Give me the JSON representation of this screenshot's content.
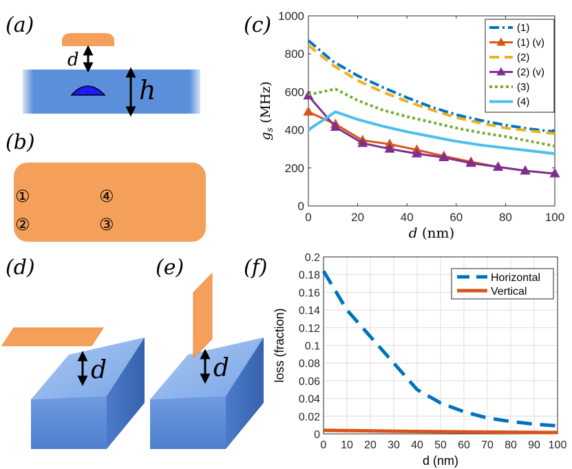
{
  "panels": {
    "a": "(a)",
    "b": "(b)",
    "c": "(c)",
    "d": "(d)",
    "e": "(e)",
    "f": "(f)"
  },
  "schematic_a": {
    "d_label": "d",
    "h_label": "h"
  },
  "schematic_b": {
    "markers": [
      "①",
      "④",
      "②",
      "③"
    ]
  },
  "schematic_d": {
    "d_label": "d"
  },
  "schematic_e": {
    "d_label": "d"
  },
  "colors": {
    "orange": "#f4a05a",
    "orange_dark": "#e8893f",
    "blue": "#5b8fd9",
    "blue_dark": "#3a6cc0",
    "bump": "#1a1aff",
    "s1": "#0072bd",
    "s1v": "#d95319",
    "s2": "#edb120",
    "s2v": "#7e2f8e",
    "s3": "#77ac30",
    "s4": "#4dbeee"
  },
  "chart_data": [
    {
      "id": "c",
      "type": "line",
      "xlabel": "d",
      "xunit": "(nm)",
      "ylabel_var": "g",
      "ylabel_sub": "s",
      "ylabel_unit": "(MHz)",
      "xlim": [
        0,
        100
      ],
      "ylim": [
        0,
        1000
      ],
      "xticks": [
        "0",
        "20",
        "40",
        "60",
        "80",
        "100"
      ],
      "yticks": [
        "0",
        "200",
        "400",
        "600",
        "800",
        "1000"
      ],
      "legend_position": "top-right",
      "series": [
        {
          "name": "(1)",
          "style": "dashdot",
          "x": [
            0,
            10,
            20,
            30,
            40,
            50,
            60,
            70,
            80,
            90,
            100
          ],
          "values": [
            870,
            760,
            685,
            625,
            570,
            520,
            480,
            450,
            425,
            405,
            390
          ]
        },
        {
          "name": "(1) (v)",
          "style": "solid-triangle",
          "x": [
            0,
            11,
            22,
            33,
            44,
            55,
            66,
            77,
            88,
            100
          ],
          "values": [
            495,
            430,
            345,
            325,
            295,
            262,
            232,
            205,
            185,
            170
          ]
        },
        {
          "name": "(2)",
          "style": "dashed",
          "x": [
            0,
            10,
            20,
            30,
            40,
            50,
            60,
            70,
            80,
            90,
            100
          ],
          "values": [
            845,
            740,
            660,
            600,
            550,
            505,
            465,
            435,
            410,
            395,
            380
          ]
        },
        {
          "name": "(2) (v)",
          "style": "solid-triangle",
          "x": [
            0,
            11,
            22,
            33,
            44,
            55,
            66,
            77,
            88,
            100
          ],
          "values": [
            580,
            415,
            330,
            300,
            275,
            255,
            225,
            205,
            185,
            170
          ]
        },
        {
          "name": "(3)",
          "style": "dotted",
          "x": [
            0,
            11,
            20,
            30,
            40,
            50,
            60,
            70,
            80,
            90,
            100
          ],
          "values": [
            585,
            615,
            555,
            505,
            470,
            440,
            410,
            385,
            365,
            340,
            315
          ]
        },
        {
          "name": "(4)",
          "style": "solid",
          "x": [
            0,
            11,
            20,
            30,
            40,
            50,
            60,
            70,
            80,
            90,
            100
          ],
          "values": [
            400,
            495,
            455,
            420,
            390,
            365,
            340,
            320,
            305,
            290,
            275
          ]
        }
      ]
    },
    {
      "id": "f",
      "type": "line",
      "xlabel": "d (nm)",
      "ylabel": "loss (fraction)",
      "xlim": [
        0,
        100
      ],
      "ylim": [
        0,
        0.2
      ],
      "xticks": [
        "0",
        "10",
        "20",
        "30",
        "40",
        "50",
        "60",
        "70",
        "80",
        "90",
        "100"
      ],
      "yticks": [
        "0",
        "0.02",
        "0.04",
        "0.06",
        "0.08",
        "0.1",
        "0.12",
        "0.14",
        "0.16",
        "0.18",
        "0.2"
      ],
      "grid": true,
      "legend_position": "top-right",
      "series": [
        {
          "name": "Horizontal",
          "style": "dashed",
          "x": [
            0,
            10,
            20,
            30,
            40,
            50,
            60,
            70,
            80,
            90,
            100
          ],
          "values": [
            0.184,
            0.14,
            0.11,
            0.08,
            0.05,
            0.035,
            0.025,
            0.018,
            0.014,
            0.011,
            0.009
          ]
        },
        {
          "name": "Vertical",
          "style": "solid",
          "x": [
            0,
            10,
            20,
            30,
            40,
            50,
            60,
            70,
            80,
            90,
            100
          ],
          "values": [
            0.004,
            0.0037,
            0.0034,
            0.003,
            0.0027,
            0.0025,
            0.0022,
            0.002,
            0.0018,
            0.0017,
            0.0016
          ]
        }
      ]
    }
  ]
}
